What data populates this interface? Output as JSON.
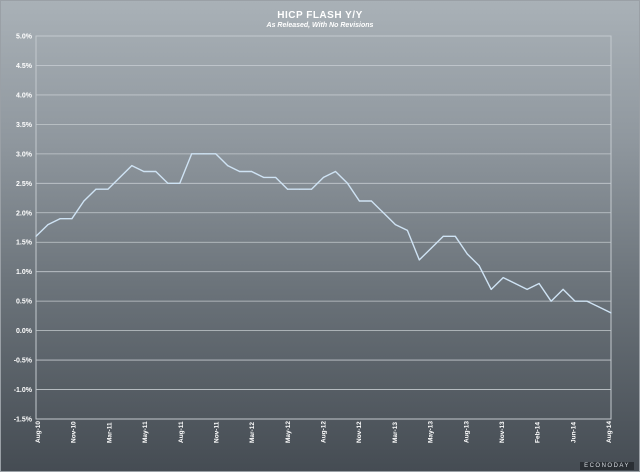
{
  "chart_data": {
    "type": "line",
    "title": "HICP FLASH Y/Y",
    "subtitle": "As Released, With No Revisions",
    "xlabel": "",
    "ylabel": "",
    "ylim": [
      -1.5,
      5.0
    ],
    "yticks": [
      "5.0%",
      "4.5%",
      "4.0%",
      "3.5%",
      "3.0%",
      "2.5%",
      "2.0%",
      "1.5%",
      "1.0%",
      "0.5%",
      "0.0%",
      "-0.5%",
      "-1.0%",
      "-1.5%"
    ],
    "xticks": [
      "Aug-10",
      "Nov-10",
      "Mar-11",
      "May-11",
      "Aug-11",
      "Nov-11",
      "Mar-12",
      "May-12",
      "Aug-12",
      "Nov-12",
      "Mar-13",
      "May-13",
      "Aug-13",
      "Nov-13",
      "Feb-14",
      "Jun-14",
      "Aug-14"
    ],
    "grid": true,
    "line_color": "#cfe3f4",
    "series": [
      {
        "values": [
          1.6,
          1.8,
          1.9,
          1.9,
          2.2,
          2.4,
          2.4,
          2.6,
          2.8,
          2.7,
          2.7,
          2.5,
          2.5,
          3.0,
          3.0,
          3.0,
          2.8,
          2.7,
          2.7,
          2.6,
          2.6,
          2.4,
          2.4,
          2.4,
          2.6,
          2.7,
          2.5,
          2.2,
          2.2,
          2.0,
          1.8,
          1.7,
          1.2,
          1.4,
          1.6,
          1.6,
          1.3,
          1.1,
          0.7,
          0.9,
          0.8,
          0.7,
          0.8,
          0.5,
          0.7,
          0.5,
          0.5,
          0.4,
          0.3
        ]
      }
    ]
  },
  "watermark": "ECONODAY"
}
